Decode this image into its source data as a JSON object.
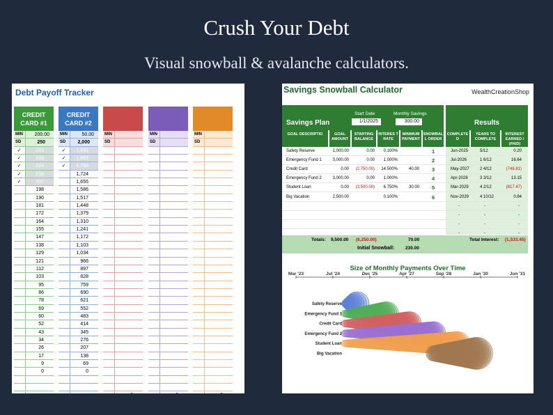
{
  "header": {
    "title": "Crush Your Debt",
    "subtitle": "Visual snowball & avalanche calculators."
  },
  "tracker": {
    "title": "Debt Payoff Tracker",
    "columns": [
      {
        "name": "CREDIT CARD #1",
        "color": "#3a9a3a",
        "light": "#dff0d8",
        "border": "#8cc98c",
        "min": "200.00",
        "sd": "250",
        "checked_values": [
          "241",
          "233",
          "224",
          "216",
          "207"
        ],
        "values": [
          "198",
          "190",
          "181",
          "172",
          "164",
          "155",
          "147",
          "138",
          "129",
          "121",
          "112",
          "103",
          "95",
          "86",
          "78",
          "69",
          "60",
          "52",
          "43",
          "34",
          "26",
          "17",
          "9",
          "0"
        ]
      },
      {
        "name": "CREDIT CARD #2",
        "color": "#3a78c2",
        "light": "#dde8f6",
        "border": "#8fb0dc",
        "min": "50.00",
        "sd": "2,000",
        "checked_values": [
          "1,931",
          "1,862",
          "1,793"
        ],
        "values": [
          "1,724",
          "1,655",
          "1,586",
          "1,517",
          "1,448",
          "1,379",
          "1,310",
          "1,241",
          "1,172",
          "1,103",
          "1,034",
          "966",
          "897",
          "828",
          "759",
          "690",
          "621",
          "552",
          "483",
          "414",
          "345",
          "276",
          "207",
          "138",
          "69",
          "0"
        ]
      },
      {
        "name": "",
        "color": "#c94a4a",
        "light": "#f7dede",
        "border": "#e0a0a0",
        "min": "",
        "sd": "",
        "checked_values": [],
        "values": [],
        "last": "0"
      },
      {
        "name": "",
        "color": "#7b5cb8",
        "light": "#e6dff3",
        "border": "#b4a2d8",
        "min": "",
        "sd": "",
        "checked_values": [],
        "values": [],
        "last": "0"
      },
      {
        "name": "",
        "color": "#e08a2a",
        "light": "#fbe9d6",
        "border": "#eebb88",
        "min": "",
        "sd": "",
        "checked_values": [],
        "values": [],
        "last": "0"
      }
    ],
    "labels": {
      "min": "MIN",
      "sd": "SD",
      "check": "✓"
    }
  },
  "calculator": {
    "title": "Savings Snowball Calculator",
    "brand": "WealthCreationShop",
    "plan_label": "Savings Plan",
    "start_date_label": "Start Date",
    "start_date": "1/1/2025",
    "monthly_label": "Monthly Savings",
    "monthly": "300.00",
    "results_label": "Results",
    "column_headers": [
      "GOAL DESCRIPTIO",
      "GOAL AMOUNT",
      "STARTING BALANCE",
      "INTERES T RATE",
      "MINIMUM PAYMENT",
      "SNOWBAL L ORDER",
      "COMPLETE D",
      "YEARS TO COMPLETE",
      "INTEREST EARNED / (PAID)"
    ],
    "rows": [
      {
        "goal": "Safety Reserve",
        "amount": "1,000.00",
        "start": "0.00",
        "rate": "0.100%",
        "min": "",
        "order": "1",
        "complete": "Jun-2025",
        "years": "5/12",
        "interest": "0.20",
        "neg_start": false,
        "neg_int": false
      },
      {
        "goal": "Emergency Fund 1",
        "amount": "3,000.00",
        "start": "0.00",
        "rate": "1.000%",
        "min": "",
        "order": "2",
        "complete": "Jul-2026",
        "years": "1 6/12",
        "interest": "16.64",
        "neg_start": false,
        "neg_int": false
      },
      {
        "goal": "Credit Card",
        "amount": "0.00",
        "start": "(2,750.00)",
        "rate": "14.500%",
        "min": "40.00",
        "order": "3",
        "complete": "May-2027",
        "years": "2 4/12",
        "interest": "(746.81)",
        "neg_start": true,
        "neg_int": true
      },
      {
        "goal": "Emergency Fund 2",
        "amount": "3,000.00",
        "start": "0.00",
        "rate": "1.000%",
        "min": "",
        "order": "4",
        "complete": "Apr-2028",
        "years": "3 3/12",
        "interest": "13.15",
        "neg_start": false,
        "neg_int": false
      },
      {
        "goal": "Student Loan",
        "amount": "0.00",
        "start": "(3,500.00)",
        "rate": "6.750%",
        "min": "30.00",
        "order": "5",
        "complete": "Mar-2029",
        "years": "4 2/12",
        "interest": "(817.47)",
        "neg_start": true,
        "neg_int": true
      },
      {
        "goal": "Big Vacation",
        "amount": "2,500.00",
        "start": "",
        "rate": "0.100%",
        "min": "",
        "order": "6",
        "complete": "Nov-2029",
        "years": "4 10/12",
        "interest": "0.84",
        "neg_start": false,
        "neg_int": false
      }
    ],
    "dash": "-",
    "totals": {
      "label": "Totals:",
      "amount": "9,500.00",
      "start": "(6,250.00)",
      "min": "70.00",
      "snowball_label": "Initial Snowball:",
      "snowball": "230.00",
      "interest_label": "Total Interest:",
      "interest": "(1,533.45)"
    }
  },
  "chart_data": {
    "type": "scatter",
    "title": "Size of Monthly Payments Over Time",
    "x_ticks": [
      "Mar '23",
      "Jul '24",
      "Dec '25",
      "Apr '27",
      "Sep '28",
      "Jan '30",
      "Jun '31"
    ],
    "categories": [
      "Safety Reserve",
      "Emergency Fund 1",
      "Credit Card",
      "Emergency Fund 2",
      "Student Loan",
      "Big Vacation"
    ],
    "series": [
      {
        "name": "Safety Reserve",
        "start": 2025.0,
        "end": 2025.45,
        "color": "#5a7fd6"
      },
      {
        "name": "Emergency Fund 1",
        "start": 2025.0,
        "end": 2026.55,
        "color": "#4fae5a"
      },
      {
        "name": "Credit Card",
        "start": 2025.0,
        "end": 2027.4,
        "color": "#d06262"
      },
      {
        "name": "Emergency Fund 2",
        "start": 2025.0,
        "end": 2028.3,
        "color": "#9b6fd0"
      },
      {
        "name": "Student Loan",
        "start": 2025.0,
        "end": 2029.2,
        "color": "#f0a050"
      },
      {
        "name": "Big Vacation",
        "start": 2028.3,
        "end": 2029.9,
        "color": "#a07850"
      }
    ]
  }
}
